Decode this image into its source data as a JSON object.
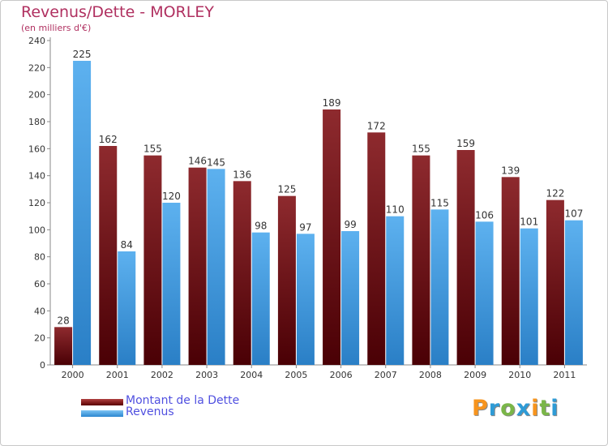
{
  "chart_data": {
    "type": "bar",
    "title": "Revenus/Dette - MORLEY",
    "subtitle": "(en milliers d'€)",
    "xlabel": "",
    "ylabel": "",
    "ylim": [
      0,
      240
    ],
    "yticks": [
      0,
      20,
      40,
      60,
      80,
      100,
      120,
      140,
      160,
      180,
      200,
      220,
      240
    ],
    "grid": false,
    "legend_position": "bottom-left",
    "categories": [
      "2000",
      "2001",
      "2002",
      "2003",
      "2004",
      "2005",
      "2006",
      "2007",
      "2008",
      "2009",
      "2010",
      "2011"
    ],
    "series": [
      {
        "name": "Montant de la Dette",
        "color": "#7a1e22",
        "values": [
          28,
          162,
          155,
          146,
          136,
          125,
          189,
          172,
          155,
          159,
          139,
          122
        ]
      },
      {
        "name": "Revenus",
        "color": "#4ea6e8",
        "values": [
          225,
          84,
          120,
          145,
          98,
          97,
          99,
          110,
          115,
          106,
          101,
          107
        ]
      }
    ]
  },
  "logo": {
    "text": "Proxiti",
    "colors": [
      "#f7941d",
      "#2e9bd6",
      "#7ab648",
      "#2e9bd6",
      "#f7941d",
      "#7ab648",
      "#2e9bd6"
    ]
  }
}
